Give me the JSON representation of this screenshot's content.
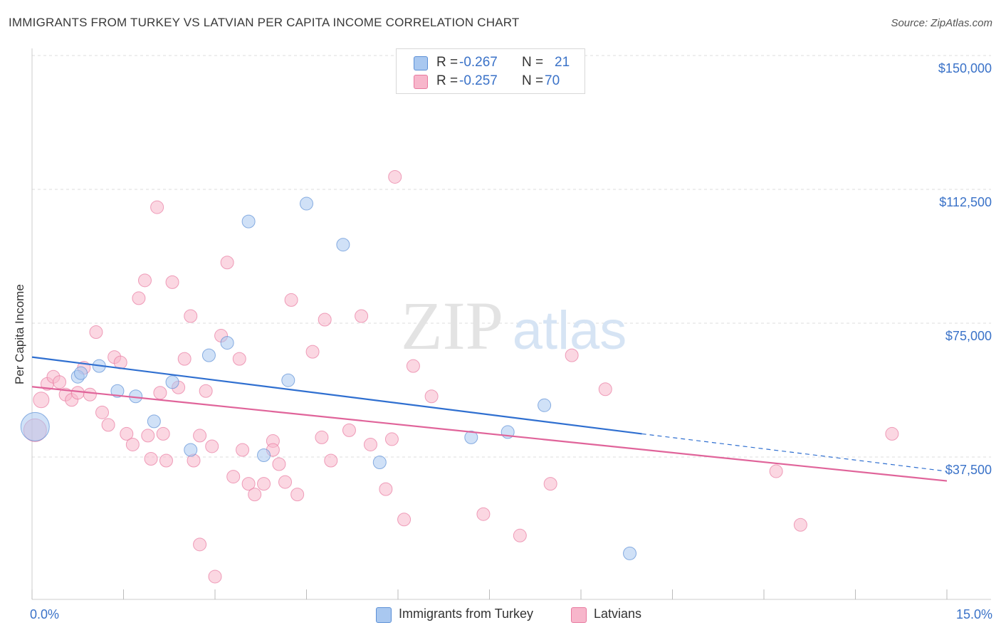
{
  "title": "IMMIGRANTS FROM TURKEY VS LATVIAN PER CAPITA INCOME CORRELATION CHART",
  "source": "Source: ZipAtlas.com",
  "watermark": {
    "zip": "ZIP",
    "atlas": "atlas"
  },
  "legend_top": [
    {
      "r_label": "R =",
      "r_value": "-0.267",
      "n_label": "N =",
      "n_value": "21",
      "color": "#a9c8f0"
    },
    {
      "r_label": "R =",
      "r_value": "-0.257",
      "n_label": "N =",
      "n_value": "70",
      "color": "#f7b6cb"
    }
  ],
  "chart_data": {
    "type": "scatter",
    "title": "IMMIGRANTS FROM TURKEY VS LATVIAN PER CAPITA INCOME CORRELATION CHART",
    "xlabel": "",
    "ylabel": "Per Capita Income",
    "xlim": [
      0,
      15
    ],
    "ylim": [
      0,
      153000
    ],
    "x_tick_labels": [
      "0.0%",
      "15.0%"
    ],
    "y_ticks": [
      37500,
      75000,
      112500,
      150000
    ],
    "y_tick_labels": [
      "$37,500",
      "$75,000",
      "$112,500",
      "$150,000"
    ],
    "grid": "horizontal dashed",
    "legend_placement": "top-center and bottom",
    "series": [
      {
        "name": "Immigrants from Turkey",
        "color": "#a9c8f0",
        "stroke": "#5b8fd6",
        "line_color": "#2f6fd0",
        "trend": {
          "x": [
            0,
            10.0
          ],
          "y": [
            65500,
            44000
          ],
          "dashed_to": [
            15,
            33500
          ]
        },
        "points": [
          [
            0.05,
            46000,
            20
          ],
          [
            0.75,
            60000,
            9
          ],
          [
            0.8,
            61000,
            9
          ],
          [
            1.1,
            63000,
            9
          ],
          [
            1.4,
            56000,
            9
          ],
          [
            1.7,
            54500,
            9
          ],
          [
            2.0,
            47500,
            9
          ],
          [
            2.3,
            58500,
            9
          ],
          [
            2.6,
            39500,
            9
          ],
          [
            2.9,
            66000,
            9
          ],
          [
            3.2,
            69500,
            9
          ],
          [
            3.55,
            103500,
            9
          ],
          [
            3.8,
            38000,
            9
          ],
          [
            4.2,
            59000,
            9
          ],
          [
            4.5,
            108500,
            9
          ],
          [
            5.1,
            97000,
            9
          ],
          [
            5.7,
            36000,
            9
          ],
          [
            7.2,
            43000,
            9
          ],
          [
            7.8,
            44500,
            9
          ],
          [
            8.4,
            52000,
            9
          ],
          [
            9.8,
            10500,
            9
          ]
        ]
      },
      {
        "name": "Latvians",
        "color": "#f7b6cb",
        "stroke": "#e8799f",
        "line_color": "#e0649a",
        "trend": {
          "x": [
            0,
            15
          ],
          "y": [
            57200,
            30800
          ]
        },
        "points": [
          [
            0.05,
            45000,
            16
          ],
          [
            0.15,
            53500,
            11
          ],
          [
            0.25,
            58000,
            9
          ],
          [
            0.35,
            60000,
            9
          ],
          [
            0.45,
            58500,
            9
          ],
          [
            0.55,
            55000,
            9
          ],
          [
            0.65,
            53500,
            9
          ],
          [
            0.75,
            55500,
            9
          ],
          [
            0.85,
            62500,
            9
          ],
          [
            0.95,
            55000,
            9
          ],
          [
            1.05,
            72500,
            9
          ],
          [
            1.15,
            50000,
            9
          ],
          [
            1.25,
            46500,
            9
          ],
          [
            1.35,
            65500,
            9
          ],
          [
            1.45,
            64000,
            9
          ],
          [
            1.55,
            44000,
            9
          ],
          [
            1.65,
            41000,
            9
          ],
          [
            1.75,
            82000,
            9
          ],
          [
            1.85,
            87000,
            9
          ],
          [
            1.95,
            37000,
            9
          ],
          [
            2.05,
            107500,
            9
          ],
          [
            2.1,
            55500,
            9
          ],
          [
            2.15,
            44000,
            9
          ],
          [
            2.2,
            36500,
            9
          ],
          [
            2.3,
            86500,
            9
          ],
          [
            2.4,
            57000,
            9
          ],
          [
            2.5,
            65000,
            9
          ],
          [
            2.6,
            77000,
            9
          ],
          [
            2.65,
            36500,
            9
          ],
          [
            2.75,
            13000,
            9
          ],
          [
            2.85,
            56000,
            9
          ],
          [
            2.95,
            40500,
            9
          ],
          [
            3.0,
            4000,
            9
          ],
          [
            3.1,
            71500,
            9
          ],
          [
            3.2,
            92000,
            9
          ],
          [
            3.3,
            32000,
            9
          ],
          [
            3.4,
            65000,
            9
          ],
          [
            3.45,
            39500,
            9
          ],
          [
            3.55,
            30000,
            9
          ],
          [
            3.65,
            27000,
            9
          ],
          [
            3.8,
            30000,
            9
          ],
          [
            3.95,
            42000,
            9
          ],
          [
            4.05,
            35500,
            9
          ],
          [
            4.15,
            30500,
            9
          ],
          [
            4.25,
            81500,
            9
          ],
          [
            4.35,
            27000,
            9
          ],
          [
            4.6,
            67000,
            9
          ],
          [
            4.8,
            76000,
            9
          ],
          [
            4.9,
            36500,
            9
          ],
          [
            5.2,
            45000,
            9
          ],
          [
            5.4,
            77000,
            9
          ],
          [
            5.55,
            41000,
            9
          ],
          [
            5.8,
            28500,
            9
          ],
          [
            5.9,
            42500,
            9
          ],
          [
            6.1,
            20000,
            9
          ],
          [
            6.25,
            63000,
            9
          ],
          [
            6.55,
            54500,
            9
          ],
          [
            7.4,
            21500,
            9
          ],
          [
            8.0,
            15500,
            9
          ],
          [
            8.5,
            30000,
            9
          ],
          [
            8.85,
            66000,
            9
          ],
          [
            9.4,
            56500,
            9
          ],
          [
            12.2,
            33500,
            9
          ],
          [
            12.6,
            18500,
            9
          ],
          [
            14.1,
            44000,
            9
          ],
          [
            5.95,
            116000,
            9
          ],
          [
            1.9,
            43500,
            9
          ],
          [
            3.95,
            39500,
            9
          ],
          [
            2.75,
            43500,
            9
          ],
          [
            4.75,
            43000,
            9
          ]
        ]
      }
    ]
  }
}
